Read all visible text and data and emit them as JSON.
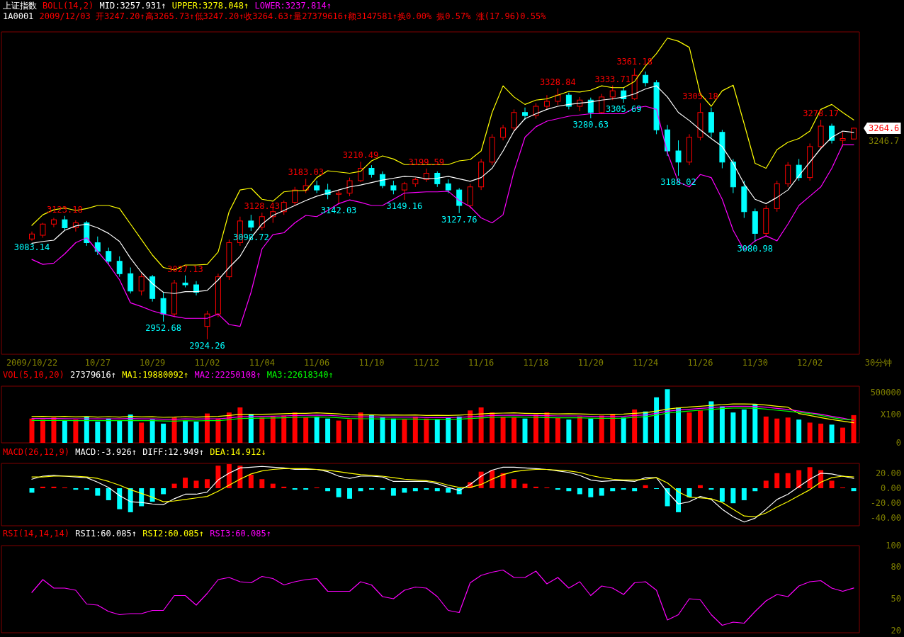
{
  "chart_data": [
    {
      "type": "candlestick",
      "title": "上证指数",
      "subtitle": "BOLL(14,2)",
      "xlabel": "30分钟",
      "legend": "top left",
      "tick_labels": "x",
      "ylim": [
        2900,
        3420
      ],
      "categories": [
        "2009/10/22",
        null,
        null,
        null,
        null,
        null,
        "10/27",
        null,
        null,
        null,
        null,
        "10/29",
        null,
        null,
        null,
        null,
        "11/02",
        null,
        null,
        null,
        null,
        "11/04",
        null,
        null,
        null,
        null,
        "11/06",
        null,
        null,
        null,
        null,
        "11/10",
        null,
        null,
        null,
        null,
        "11/12",
        null,
        null,
        null,
        null,
        "11/16",
        null,
        null,
        null,
        null,
        "11/18",
        null,
        null,
        null,
        null,
        "11/20",
        null,
        null,
        null,
        null,
        "11/24",
        null,
        null,
        null,
        null,
        "11/26",
        null,
        null,
        null,
        null,
        "11/30",
        null,
        null,
        null,
        null,
        "12/02",
        null,
        null,
        null,
        null
      ],
      "ohlc": [
        [
          3086,
          3098,
          3083.14,
          3094
        ],
        [
          3092,
          3112,
          3088,
          3110
        ],
        [
          3110,
          3120,
          3105,
          3117
        ],
        [
          3117,
          3123.18,
          3100,
          3104
        ],
        [
          3104,
          3116,
          3098,
          3112
        ],
        [
          3112,
          3115,
          3075,
          3080
        ],
        [
          3080,
          3090,
          3060,
          3066
        ],
        [
          3066,
          3072,
          3045,
          3050
        ],
        [
          3050,
          3058,
          3025,
          3030
        ],
        [
          3030,
          3040,
          2998,
          3002
        ],
        [
          3002,
          3030,
          2995,
          3025
        ],
        [
          3025,
          3028,
          2985,
          2990
        ],
        [
          2990,
          3000,
          2952.68,
          2965
        ],
        [
          2965,
          3020,
          2960,
          3015
        ],
        [
          3015,
          3027.13,
          3008,
          3012
        ],
        [
          3012,
          3018,
          2995,
          3000
        ],
        [
          2945,
          2970,
          2924.26,
          2965
        ],
        [
          2965,
          3030,
          2960,
          3025
        ],
        [
          3025,
          3085,
          3020,
          3080
        ],
        [
          3080,
          3122,
          3075,
          3115
        ],
        [
          3115,
          3125,
          3098.72,
          3105
        ],
        [
          3105,
          3128.43,
          3100,
          3122
        ],
        [
          3122,
          3135,
          3112,
          3130
        ],
        [
          3130,
          3148,
          3125,
          3145
        ],
        [
          3145,
          3170,
          3140,
          3165
        ],
        [
          3165,
          3183.03,
          3160,
          3172
        ],
        [
          3172,
          3180,
          3160,
          3165
        ],
        [
          3165,
          3175,
          3150,
          3158
        ],
        [
          3158,
          3165,
          3142.03,
          3160
        ],
        [
          3160,
          3185,
          3155,
          3180
        ],
        [
          3180,
          3210.49,
          3178,
          3200
        ],
        [
          3200,
          3205,
          3185,
          3190
        ],
        [
          3190,
          3195,
          3168,
          3172
        ],
        [
          3172,
          3180,
          3158,
          3165
        ],
        [
          3165,
          3178,
          3149.16,
          3175
        ],
        [
          3175,
          3185,
          3170,
          3182
        ],
        [
          3182,
          3199.59,
          3178,
          3192
        ],
        [
          3192,
          3195,
          3170,
          3175
        ],
        [
          3175,
          3182,
          3160,
          3165
        ],
        [
          3165,
          3168,
          3127.76,
          3140
        ],
        [
          3140,
          3175,
          3135,
          3170
        ],
        [
          3170,
          3215,
          3165,
          3210
        ],
        [
          3210,
          3255,
          3205,
          3250
        ],
        [
          3250,
          3270,
          3245,
          3265
        ],
        [
          3265,
          3295,
          3260,
          3290
        ],
        [
          3290,
          3298,
          3278,
          3285
        ],
        [
          3285,
          3305,
          3280,
          3300
        ],
        [
          3300,
          3318,
          3295,
          3308
        ],
        [
          3308,
          3328.84,
          3302,
          3318
        ],
        [
          3318,
          3322,
          3295,
          3300
        ],
        [
          3300,
          3315,
          3292,
          3310
        ],
        [
          3310,
          3314,
          3280.63,
          3290
        ],
        [
          3290,
          3320,
          3288,
          3315
        ],
        [
          3315,
          3333.71,
          3310,
          3325
        ],
        [
          3325,
          3330,
          3305.69,
          3312
        ],
        [
          3312,
          3361.18,
          3310,
          3350
        ],
        [
          3350,
          3356,
          3332,
          3338
        ],
        [
          3338,
          3342,
          3255,
          3262
        ],
        [
          3262,
          3270,
          3220,
          3228
        ],
        [
          3228,
          3245,
          3188.02,
          3210
        ],
        [
          3210,
          3255,
          3205,
          3250
        ],
        [
          3250,
          3305.18,
          3245,
          3290
        ],
        [
          3290,
          3298,
          3250,
          3258
        ],
        [
          3258,
          3262,
          3200,
          3210
        ],
        [
          3210,
          3215,
          3160,
          3170
        ],
        [
          3170,
          3180,
          3120,
          3130
        ],
        [
          3130,
          3135,
          3080.98,
          3095
        ],
        [
          3095,
          3140,
          3090,
          3135
        ],
        [
          3135,
          3180,
          3130,
          3175
        ],
        [
          3175,
          3210,
          3170,
          3205
        ],
        [
          3205,
          3215,
          3180,
          3185
        ],
        [
          3185,
          3240,
          3180,
          3235
        ],
        [
          3235,
          3278.17,
          3230,
          3268
        ],
        [
          3268,
          3272,
          3240,
          3245
        ],
        [
          3245,
          3258,
          3235,
          3248
        ],
        [
          3247.2,
          3265.73,
          3247.2,
          3264.63
        ]
      ],
      "colors": [
        "#ff0000",
        "#ff0000",
        "#ff0000",
        "#00ffff",
        "#ff0000",
        "#00ffff",
        "#00ffff",
        "#00ffff",
        "#00ffff",
        "#00ffff",
        "#ff0000",
        "#00ffff",
        "#00ffff",
        "#ff0000",
        "#00ffff",
        "#00ffff",
        "#ff0000",
        "#ff0000",
        "#ff0000",
        "#ff0000",
        "#00ffff",
        "#ff0000",
        "#ff0000",
        "#ff0000",
        "#ff0000",
        "#ff0000",
        "#00ffff",
        "#00ffff",
        "#ff0000",
        "#ff0000",
        "#ff0000",
        "#00ffff",
        "#00ffff",
        "#00ffff",
        "#ff0000",
        "#ff0000",
        "#ff0000",
        "#00ffff",
        "#00ffff",
        "#00ffff",
        "#ff0000",
        "#ff0000",
        "#ff0000",
        "#ff0000",
        "#ff0000",
        "#00ffff",
        "#ff0000",
        "#ff0000",
        "#ff0000",
        "#00ffff",
        "#ff0000",
        "#00ffff",
        "#ff0000",
        "#ff0000",
        "#00ffff",
        "#ff0000",
        "#00ffff",
        "#00ffff",
        "#00ffff",
        "#00ffff",
        "#ff0000",
        "#ff0000",
        "#00ffff",
        "#00ffff",
        "#00ffff",
        "#00ffff",
        "#00ffff",
        "#ff0000",
        "#ff0000",
        "#ff0000",
        "#00ffff",
        "#ff0000",
        "#ff0000",
        "#00ffff",
        "#ff0000",
        "#ff0000"
      ],
      "value_labels": [
        "3083.14",
        null,
        null,
        "3123.18",
        null,
        null,
        null,
        null,
        null,
        null,
        null,
        null,
        "2952.68",
        null,
        "3027.13",
        null,
        "2924.26",
        null,
        null,
        null,
        "3098.72",
        "3128.43",
        null,
        null,
        null,
        "3183.03",
        null,
        null,
        "3142.03",
        null,
        "3210.49",
        null,
        null,
        null,
        "3149.16",
        null,
        "3199.59",
        null,
        null,
        "3127.76",
        null,
        null,
        null,
        null,
        null,
        null,
        null,
        null,
        "3328.84",
        null,
        null,
        "3280.63",
        null,
        "3333.71",
        "3305.69",
        "3361.18",
        null,
        null,
        null,
        "3188.02",
        null,
        "3305.18",
        null,
        null,
        null,
        null,
        "3080.98",
        null,
        null,
        null,
        null,
        null,
        "3278.17",
        null,
        null,
        null
      ],
      "series": [
        {
          "name": "MID:3257.931↑",
          "type": "line",
          "color": "#ffffff",
          "values": [
            3079,
            3082,
            3084,
            3100,
            3107,
            3110,
            3104,
            3095,
            3082,
            3055,
            3032,
            3014,
            3000,
            2998,
            3001,
            3001,
            3003,
            3020,
            3040,
            3058,
            3088,
            3110,
            3124,
            3132,
            3140,
            3148,
            3155,
            3160,
            3165,
            3170,
            3173,
            3177,
            3181,
            3184,
            3187,
            3186,
            3183,
            3184,
            3187,
            3183,
            3179,
            3185,
            3200,
            3228,
            3260,
            3280,
            3288,
            3295,
            3300,
            3303,
            3305,
            3307,
            3310,
            3312,
            3315,
            3320,
            3328,
            3333,
            3315,
            3290,
            3277,
            3262,
            3248,
            3235,
            3208,
            3175,
            3150,
            3143,
            3153,
            3165,
            3188,
            3210,
            3232,
            3250,
            3260,
            3257.931
          ]
        },
        {
          "name": "UPPER:3278.048↑",
          "type": "line",
          "color": "#ffff00",
          "values": [
            3108,
            3125,
            3133,
            3136,
            3132,
            3135,
            3140,
            3140,
            3135,
            3110,
            3085,
            3060,
            3040,
            3036,
            3044,
            3044,
            3045,
            3065,
            3130,
            3165,
            3168,
            3150,
            3147,
            3162,
            3164,
            3164,
            3185,
            3196,
            3194,
            3192,
            3195,
            3212,
            3220,
            3215,
            3206,
            3206,
            3206,
            3206,
            3206,
            3212,
            3214,
            3228,
            3290,
            3333,
            3315,
            3303,
            3310,
            3312,
            3318,
            3324,
            3323,
            3326,
            3333,
            3330,
            3330,
            3340,
            3365,
            3385,
            3410,
            3405,
            3395,
            3320,
            3300,
            3325,
            3334,
            3272,
            3208,
            3200,
            3230,
            3242,
            3248,
            3260,
            3295,
            3303,
            3290,
            3278.048
          ]
        },
        {
          "name": "LOWER:3237.814↑",
          "type": "line",
          "color": "#ff00ff",
          "values": [
            3053,
            3045,
            3047,
            3062,
            3080,
            3088,
            3066,
            3045,
            3020,
            2983,
            2977,
            2970,
            2965,
            2961,
            2958,
            2958,
            2958,
            2965,
            2948,
            2945,
            3000,
            3070,
            3093,
            3096,
            3112,
            3124,
            3122,
            3132,
            3143,
            3149,
            3145,
            3140,
            3140,
            3150,
            3160,
            3161,
            3162,
            3162,
            3163,
            3148,
            3138,
            3120,
            3112,
            3125,
            3195,
            3250,
            3267,
            3276,
            3280,
            3284,
            3286,
            3288,
            3288,
            3288,
            3288,
            3297,
            3300,
            3295,
            3225,
            3178,
            3170,
            3190,
            3185,
            3150,
            3100,
            3068,
            3083,
            3091,
            3083,
            3110,
            3140,
            3155,
            3170,
            3200,
            3238,
            3237.814
          ]
        }
      ],
      "annotations": [
        "1A0001",
        "2009/12/03 开3247.20↑高3265.73↑低3247.20↑收3264.63↑量27379616↑额3147581↑换0.00% 振0.57% 涨(17.96)0.55%",
        "3264.6",
        "3246.7"
      ]
    },
    {
      "type": "bar",
      "subtitle": "VOL(5,10,20)",
      "ylabel": "X100",
      "legend": "top left",
      "tick_labels": "y",
      "ylim": [
        0,
        560000
      ],
      "yticks": [
        0,
        500000
      ],
      "categories": [
        null,
        null,
        null,
        null,
        null,
        null,
        null,
        null,
        null,
        null,
        null,
        null,
        null,
        null,
        null,
        null,
        null,
        null,
        null,
        null,
        null,
        null,
        null,
        null,
        null,
        null,
        null,
        null,
        null,
        null,
        null,
        null,
        null,
        null,
        null,
        null,
        null,
        null,
        null,
        null,
        null,
        null,
        null,
        null,
        null,
        null,
        null,
        null,
        null,
        null,
        null,
        null,
        null,
        null,
        null,
        null,
        null,
        null,
        null,
        null,
        null,
        null,
        null,
        null,
        null,
        null,
        null,
        null,
        null,
        null,
        null,
        null,
        null,
        null,
        null,
        null
      ],
      "values": [
        240000,
        230000,
        250000,
        220000,
        230000,
        260000,
        210000,
        240000,
        220000,
        280000,
        200000,
        230000,
        190000,
        250000,
        220000,
        210000,
        290000,
        240000,
        300000,
        350000,
        280000,
        250000,
        260000,
        270000,
        300000,
        250000,
        260000,
        240000,
        220000,
        230000,
        300000,
        280000,
        250000,
        240000,
        230000,
        260000,
        240000,
        230000,
        250000,
        260000,
        320000,
        350000,
        300000,
        260000,
        250000,
        240000,
        280000,
        300000,
        250000,
        230000,
        260000,
        240000,
        270000,
        280000,
        250000,
        330000,
        310000,
        450000,
        530000,
        350000,
        300000,
        320000,
        410000,
        360000,
        300000,
        330000,
        380000,
        260000,
        240000,
        250000,
        230000,
        200000,
        190000,
        180000,
        150000,
        273796
      ],
      "colors": [
        "#ff0000",
        "#ff0000",
        "#ff0000",
        "#00ffff",
        "#ff0000",
        "#00ffff",
        "#00ffff",
        "#00ffff",
        "#00ffff",
        "#00ffff",
        "#ff0000",
        "#00ffff",
        "#00ffff",
        "#ff0000",
        "#00ffff",
        "#00ffff",
        "#ff0000",
        "#ff0000",
        "#ff0000",
        "#ff0000",
        "#00ffff",
        "#ff0000",
        "#ff0000",
        "#ff0000",
        "#ff0000",
        "#ff0000",
        "#00ffff",
        "#00ffff",
        "#ff0000",
        "#ff0000",
        "#ff0000",
        "#00ffff",
        "#00ffff",
        "#00ffff",
        "#ff0000",
        "#ff0000",
        "#ff0000",
        "#00ffff",
        "#00ffff",
        "#00ffff",
        "#ff0000",
        "#ff0000",
        "#ff0000",
        "#ff0000",
        "#ff0000",
        "#00ffff",
        "#ff0000",
        "#ff0000",
        "#ff0000",
        "#00ffff",
        "#ff0000",
        "#00ffff",
        "#ff0000",
        "#ff0000",
        "#00ffff",
        "#ff0000",
        "#00ffff",
        "#00ffff",
        "#00ffff",
        "#00ffff",
        "#ff0000",
        "#ff0000",
        "#00ffff",
        "#00ffff",
        "#00ffff",
        "#00ffff",
        "#00ffff",
        "#ff0000",
        "#ff0000",
        "#ff0000",
        "#00ffff",
        "#ff0000",
        "#ff0000",
        "#00ffff",
        "#ff0000",
        "#ff0000"
      ],
      "series": [
        {
          "name": "MA1:19880092↑",
          "type": "line",
          "color": "#ffff00",
          "values": [
            260000,
            262000,
            258000,
            261000,
            256000,
            260000,
            254000,
            259000,
            255000,
            262000,
            256000,
            258000,
            252000,
            254000,
            259000,
            255000,
            258000,
            262000,
            270000,
            282000,
            282000,
            282000,
            284000,
            288000,
            292000,
            292000,
            296000,
            292000,
            286000,
            278000,
            276000,
            278000,
            274000,
            276000,
            274000,
            276000,
            270000,
            272000,
            270000,
            274000,
            280000,
            286000,
            292000,
            294000,
            296000,
            292000,
            290000,
            288000,
            286000,
            288000,
            286000,
            282000,
            280000,
            282000,
            284000,
            292000,
            298000,
            314000,
            334000,
            346000,
            354000,
            362000,
            370000,
            378000,
            384000,
            384000,
            382000,
            374000,
            362000,
            352000,
            290000,
            270000,
            250000,
            230000,
            215000,
            198801
          ]
        },
        {
          "name": "MA2:22250108↑",
          "type": "line",
          "color": "#ff00ff",
          "values": [
            240000,
            240000,
            240000,
            239000,
            238000,
            238000,
            237000,
            238000,
            237000,
            240000,
            237000,
            237000,
            234000,
            233000,
            237000,
            235000,
            237000,
            238000,
            246000,
            258000,
            260000,
            262000,
            264000,
            266000,
            270000,
            272000,
            274000,
            272000,
            266000,
            258000,
            256000,
            256000,
            254000,
            254000,
            254000,
            254000,
            250000,
            250000,
            250000,
            252000,
            258000,
            264000,
            270000,
            272000,
            274000,
            272000,
            270000,
            268000,
            266000,
            266000,
            266000,
            262000,
            260000,
            260000,
            262000,
            270000,
            276000,
            292000,
            312000,
            324000,
            332000,
            340000,
            348000,
            356000,
            362000,
            362000,
            360000,
            352000,
            340000,
            330000,
            314000,
            296000,
            282000,
            262000,
            244000,
            222501
          ]
        },
        {
          "name": "MA3:22618340↑",
          "type": "line",
          "color": "#00ff00",
          "values": [
            222000,
            222000,
            222000,
            221000,
            220000,
            220000,
            219000,
            220000,
            219000,
            222000,
            219000,
            219000,
            216000,
            215000,
            219000,
            217000,
            219000,
            220000,
            228000,
            240000,
            242000,
            244000,
            246000,
            248000,
            252000,
            254000,
            256000,
            254000,
            248000,
            240000,
            238000,
            238000,
            236000,
            236000,
            236000,
            236000,
            232000,
            232000,
            232000,
            234000,
            240000,
            246000,
            252000,
            254000,
            256000,
            254000,
            252000,
            250000,
            248000,
            248000,
            248000,
            244000,
            242000,
            242000,
            244000,
            252000,
            258000,
            274000,
            294000,
            306000,
            314000,
            322000,
            330000,
            338000,
            344000,
            344000,
            342000,
            334000,
            322000,
            312000,
            300000,
            290000,
            270000,
            250000,
            232000,
            226183
          ]
        }
      ],
      "annotations": [
        "27379616↑"
      ]
    },
    {
      "type": "bar",
      "subtitle": "MACD(26,12,9)",
      "annotations": [
        "MACD:-3.926↑"
      ],
      "legend": "top left",
      "tick_labels": "y",
      "ylim": [
        -50,
        33
      ],
      "yticks": [
        {
          "value": 20,
          "label": "20.00"
        },
        {
          "value": 0,
          "label": "0.00"
        },
        {
          "value": -20,
          "label": "-20.00"
        },
        {
          "value": -40,
          "label": "-40.00"
        }
      ],
      "categories": [
        null,
        null,
        null,
        null,
        null,
        null,
        null,
        null,
        null,
        null,
        null,
        null,
        null,
        null,
        null,
        null,
        null,
        null,
        null,
        null,
        null,
        null,
        null,
        null,
        null,
        null,
        null,
        null,
        null,
        null,
        null,
        null,
        null,
        null,
        null,
        null,
        null,
        null,
        null,
        null,
        null,
        null,
        null,
        null,
        null,
        null,
        null,
        null,
        null,
        null,
        null,
        null,
        null,
        null,
        null,
        null,
        null,
        null,
        null,
        null,
        null,
        null,
        null,
        null,
        null,
        null,
        null,
        null,
        null,
        null,
        null,
        null,
        null,
        null,
        null,
        null
      ],
      "series": [
        {
          "name": "DIFF:12.949↑",
          "type": "line",
          "color": "#ffffff",
          "values": [
            12,
            16,
            17,
            16,
            15,
            14,
            8,
            1,
            -10,
            -18,
            -19,
            -21,
            -22,
            -14,
            -8,
            -8,
            -5,
            11,
            20,
            27,
            28,
            29,
            28,
            27,
            25,
            25,
            25,
            22,
            16,
            13,
            16,
            16,
            15,
            9,
            9,
            9,
            9,
            6,
            1,
            -3,
            5,
            16,
            24,
            28,
            28,
            27,
            26,
            25,
            23,
            21,
            17,
            11,
            9,
            10,
            10,
            9,
            14,
            14,
            -5,
            -21,
            -18,
            -11,
            -15,
            -28,
            -38,
            -45,
            -40,
            -28,
            -15,
            -8,
            2,
            12,
            20,
            19,
            16,
            12.949
          ]
        },
        {
          "name": "DEA:14.912↓",
          "type": "line",
          "color": "#ffff00",
          "values": [
            15,
            15,
            16,
            16,
            16,
            15,
            13,
            9,
            4,
            -2,
            -7,
            -12,
            -18,
            -17,
            -15,
            -13,
            -11,
            -4,
            4,
            12,
            19,
            23,
            25,
            26,
            26,
            26,
            25,
            24,
            22,
            20,
            18,
            17,
            16,
            14,
            12,
            11,
            10,
            8,
            4,
            1,
            1,
            5,
            12,
            18,
            22,
            24,
            25,
            25,
            24,
            23,
            21,
            17,
            14,
            12,
            11,
            11,
            12,
            14,
            7,
            -5,
            -12,
            -13,
            -14,
            -19,
            -28,
            -37,
            -38,
            -33,
            -25,
            -18,
            -10,
            -2,
            8,
            14,
            16,
            14.912
          ]
        },
        {
          "type": "bar",
          "values": [
            -6,
            2,
            2,
            1,
            -2,
            -2,
            -10,
            -16,
            -28,
            -32,
            -24,
            -18,
            -8,
            6,
            14,
            10,
            12,
            30,
            32,
            30,
            18,
            12,
            6,
            2,
            -2,
            -2,
            1,
            -4,
            -12,
            -14,
            -4,
            -2,
            -2,
            -10,
            -6,
            -4,
            -2,
            -4,
            -6,
            -8,
            8,
            22,
            24,
            20,
            12,
            6,
            2,
            1,
            -2,
            -4,
            -8,
            -12,
            -10,
            -4,
            -2,
            -4,
            4,
            -1,
            -24,
            -32,
            -12,
            4,
            -2,
            -18,
            -20,
            -16,
            -4,
            10,
            20,
            20,
            24,
            28,
            24,
            10,
            1,
            -3.926
          ],
          "colors": [
            "#00ffff",
            "#ff0000",
            "#ff0000",
            "#ff0000",
            "#00ffff",
            "#00ffff",
            "#00ffff",
            "#00ffff",
            "#00ffff",
            "#00ffff",
            "#00ffff",
            "#00ffff",
            "#00ffff",
            "#ff0000",
            "#ff0000",
            "#ff0000",
            "#ff0000",
            "#ff0000",
            "#ff0000",
            "#ff0000",
            "#ff0000",
            "#ff0000",
            "#ff0000",
            "#ff0000",
            "#00ffff",
            "#00ffff",
            "#ff0000",
            "#00ffff",
            "#00ffff",
            "#00ffff",
            "#00ffff",
            "#00ffff",
            "#00ffff",
            "#00ffff",
            "#00ffff",
            "#00ffff",
            "#00ffff",
            "#00ffff",
            "#00ffff",
            "#00ffff",
            "#ff0000",
            "#ff0000",
            "#ff0000",
            "#ff0000",
            "#ff0000",
            "#ff0000",
            "#ff0000",
            "#ff0000",
            "#00ffff",
            "#00ffff",
            "#00ffff",
            "#00ffff",
            "#00ffff",
            "#00ffff",
            "#00ffff",
            "#00ffff",
            "#ff0000",
            "#00ffff",
            "#00ffff",
            "#00ffff",
            "#00ffff",
            "#ff0000",
            "#00ffff",
            "#00ffff",
            "#00ffff",
            "#00ffff",
            "#00ffff",
            "#ff0000",
            "#ff0000",
            "#ff0000",
            "#ff0000",
            "#ff0000",
            "#ff0000",
            "#ff0000",
            "#ff0000",
            "#00ffff"
          ]
        }
      ]
    },
    {
      "type": "line",
      "subtitle": "RSI(14,14,14)",
      "legend": "top left",
      "tick_labels": "y",
      "ylim": [
        18,
        100
      ],
      "yticks": [
        20,
        50,
        80,
        100
      ],
      "categories": [
        null,
        null,
        null,
        null,
        null,
        null,
        null,
        null,
        null,
        null,
        null,
        null,
        null,
        null,
        null,
        null,
        null,
        null,
        null,
        null,
        null,
        null,
        null,
        null,
        null,
        null,
        null,
        null,
        null,
        null,
        null,
        null,
        null,
        null,
        null,
        null,
        null,
        null,
        null,
        null,
        null,
        null,
        null,
        null,
        null,
        null,
        null,
        null,
        null,
        null,
        null,
        null,
        null,
        null,
        null,
        null,
        null,
        null,
        null,
        null,
        null,
        null,
        null,
        null,
        null,
        null,
        null,
        null,
        null,
        null,
        null,
        null,
        null,
        null,
        null,
        null
      ],
      "series": [
        {
          "name": "RSI1:60.085↑",
          "color": "#ffffff",
          "values": [
            null,
            null,
            null,
            null,
            null,
            null,
            null,
            null,
            null,
            null,
            null,
            null,
            null,
            null,
            null,
            null,
            null,
            null,
            null,
            null,
            null,
            null,
            null,
            null,
            null,
            null,
            null,
            null,
            null,
            null,
            null,
            null,
            null,
            null,
            null,
            null,
            null,
            null,
            null,
            null,
            null,
            null,
            null,
            null,
            null,
            null,
            null,
            null,
            null,
            null,
            null,
            null,
            null,
            null,
            null,
            null,
            null,
            null,
            null,
            null,
            null,
            null,
            null,
            null,
            null,
            null,
            null,
            null,
            null,
            null,
            null,
            null,
            null,
            null,
            null,
            null
          ]
        },
        {
          "name": "RSI2:60.085↑",
          "color": "#ffff00",
          "values": [
            null,
            null,
            null,
            null,
            null,
            null,
            null,
            null,
            null,
            null,
            null,
            null,
            null,
            null,
            null,
            null,
            null,
            null,
            null,
            null,
            null,
            null,
            null,
            null,
            null,
            null,
            null,
            null,
            null,
            null,
            null,
            null,
            null,
            null,
            null,
            null,
            null,
            null,
            null,
            null,
            null,
            null,
            null,
            null,
            null,
            null,
            null,
            null,
            null,
            null,
            null,
            null,
            null,
            null,
            null,
            null,
            null,
            null,
            null,
            null,
            null,
            null,
            null,
            null,
            null,
            null,
            null,
            null,
            null,
            null,
            null,
            null,
            null,
            null,
            null,
            null
          ]
        },
        {
          "name": "RSI3:60.085↑",
          "color": "#ff00ff",
          "values": [
            56,
            68,
            60,
            60,
            58,
            45,
            44,
            38,
            35,
            36,
            36,
            39,
            39,
            53,
            53,
            44,
            55,
            68,
            70,
            66,
            65,
            71,
            69,
            63,
            66,
            68,
            69,
            57,
            57,
            57,
            66,
            63,
            52,
            50,
            58,
            61,
            60,
            52,
            39,
            37,
            65,
            72,
            75,
            77,
            70,
            70,
            76,
            64,
            70,
            60,
            66,
            53,
            62,
            60,
            54,
            65,
            66,
            58,
            30,
            35,
            50,
            49,
            35,
            25,
            28,
            27,
            38,
            48,
            54,
            52,
            62,
            66,
            67,
            60,
            57,
            60.085
          ]
        }
      ]
    }
  ]
}
